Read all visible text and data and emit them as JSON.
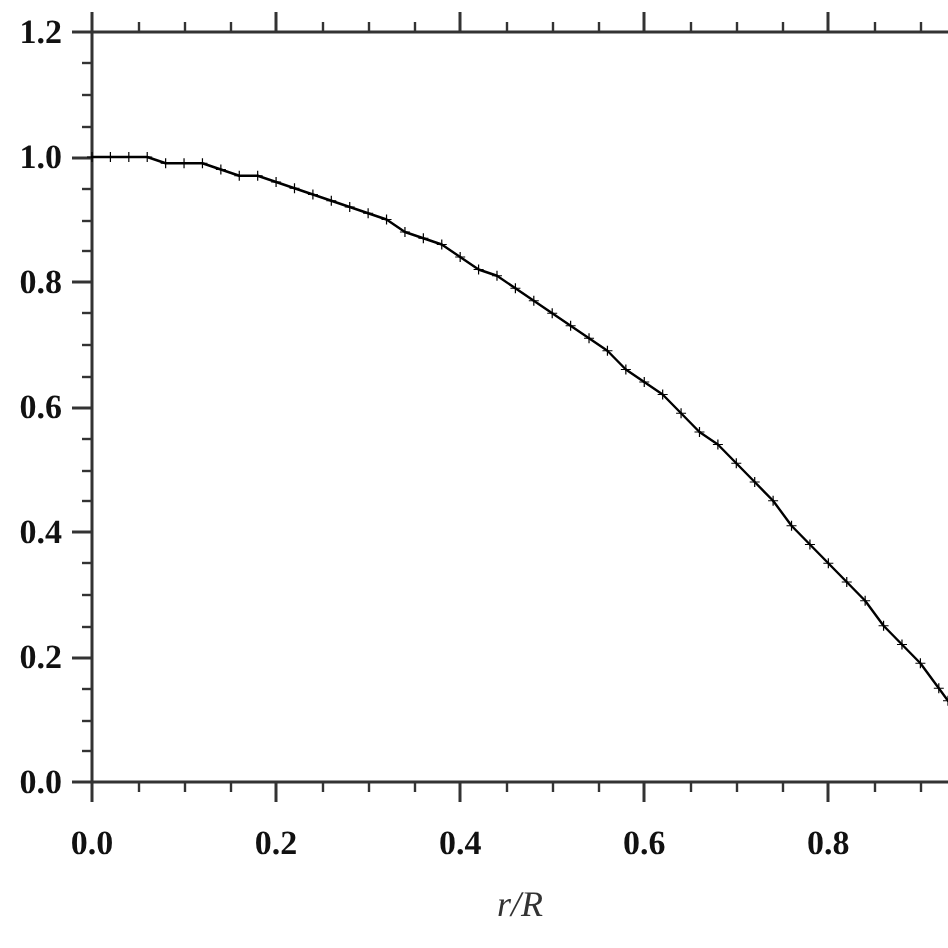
{
  "chart_data": {
    "type": "line",
    "xlabel": "r/R",
    "color": "#000000",
    "marker": "cross",
    "line_style": "solid",
    "x": [
      0,
      0.02,
      0.04,
      0.06,
      0.08,
      0.1,
      0.12,
      0.14,
      0.16,
      0.18,
      0.2,
      0.22,
      0.24,
      0.26,
      0.28,
      0.3,
      0.32,
      0.34,
      0.36,
      0.38,
      0.4,
      0.42,
      0.44,
      0.46,
      0.48,
      0.5,
      0.52,
      0.54,
      0.56,
      0.58,
      0.6,
      0.62,
      0.64,
      0.66,
      0.68,
      0.7,
      0.72,
      0.74,
      0.76,
      0.78,
      0.8,
      0.82,
      0.84,
      0.86,
      0.88,
      0.9,
      0.92,
      0.93
    ],
    "values": [
      1.0,
      1.0,
      1.0,
      1.0,
      0.99,
      0.99,
      0.99,
      0.98,
      0.97,
      0.97,
      0.96,
      0.95,
      0.94,
      0.93,
      0.92,
      0.91,
      0.9,
      0.88,
      0.87,
      0.86,
      0.84,
      0.82,
      0.81,
      0.79,
      0.77,
      0.75,
      0.73,
      0.71,
      0.69,
      0.66,
      0.64,
      0.62,
      0.59,
      0.56,
      0.54,
      0.51,
      0.48,
      0.45,
      0.41,
      0.38,
      0.35,
      0.32,
      0.29,
      0.25,
      0.22,
      0.19,
      0.15,
      0.13
    ],
    "xlim": [
      0,
      0.93
    ],
    "ylim": [
      0,
      1.2
    ],
    "xticks": [
      {
        "value": 0,
        "label": "0.0"
      },
      {
        "value": 0.05,
        "label": null
      },
      {
        "value": 0.1,
        "label": null
      },
      {
        "value": 0.15,
        "label": null
      },
      0.2,
      {
        "value": 0.25,
        "label": null
      },
      {
        "value": 0.3,
        "label": null
      },
      {
        "value": 0.35,
        "label": null
      },
      0.4,
      {
        "value": 0.45,
        "label": null
      },
      {
        "value": 0.5,
        "label": null
      },
      {
        "value": 0.55,
        "label": null
      },
      0.6,
      {
        "value": 0.65,
        "label": null
      },
      {
        "value": 0.7,
        "label": null
      },
      {
        "value": 0.75,
        "label": null
      },
      0.8,
      {
        "value": 0.85,
        "label": null
      },
      {
        "value": 0.9,
        "label": null
      }
    ],
    "yticks": [
      {
        "value": 0,
        "label": "0.0"
      },
      {
        "value": 0.05,
        "label": null
      },
      {
        "value": 0.1,
        "label": null
      },
      {
        "value": 0.15,
        "label": null
      },
      0.2,
      {
        "value": 0.25,
        "label": null
      },
      {
        "value": 0.3,
        "label": null
      },
      {
        "value": 0.35,
        "label": null
      },
      0.4,
      {
        "value": 0.45,
        "label": null
      },
      {
        "value": 0.5,
        "label": null
      },
      {
        "value": 0.55,
        "label": null
      },
      0.6,
      {
        "value": 0.65,
        "label": null
      },
      {
        "value": 0.7,
        "label": null
      },
      {
        "value": 0.75,
        "label": null
      },
      0.8,
      {
        "value": 0.85,
        "label": null
      },
      {
        "value": 0.9,
        "label": null
      },
      {
        "value": 0.95,
        "label": null
      },
      {
        "value": 1,
        "label": "1.0"
      },
      {
        "value": 1.05,
        "label": null
      },
      {
        "value": 1.1,
        "label": null
      },
      {
        "value": 1.15,
        "label": null
      },
      1.2
    ]
  }
}
